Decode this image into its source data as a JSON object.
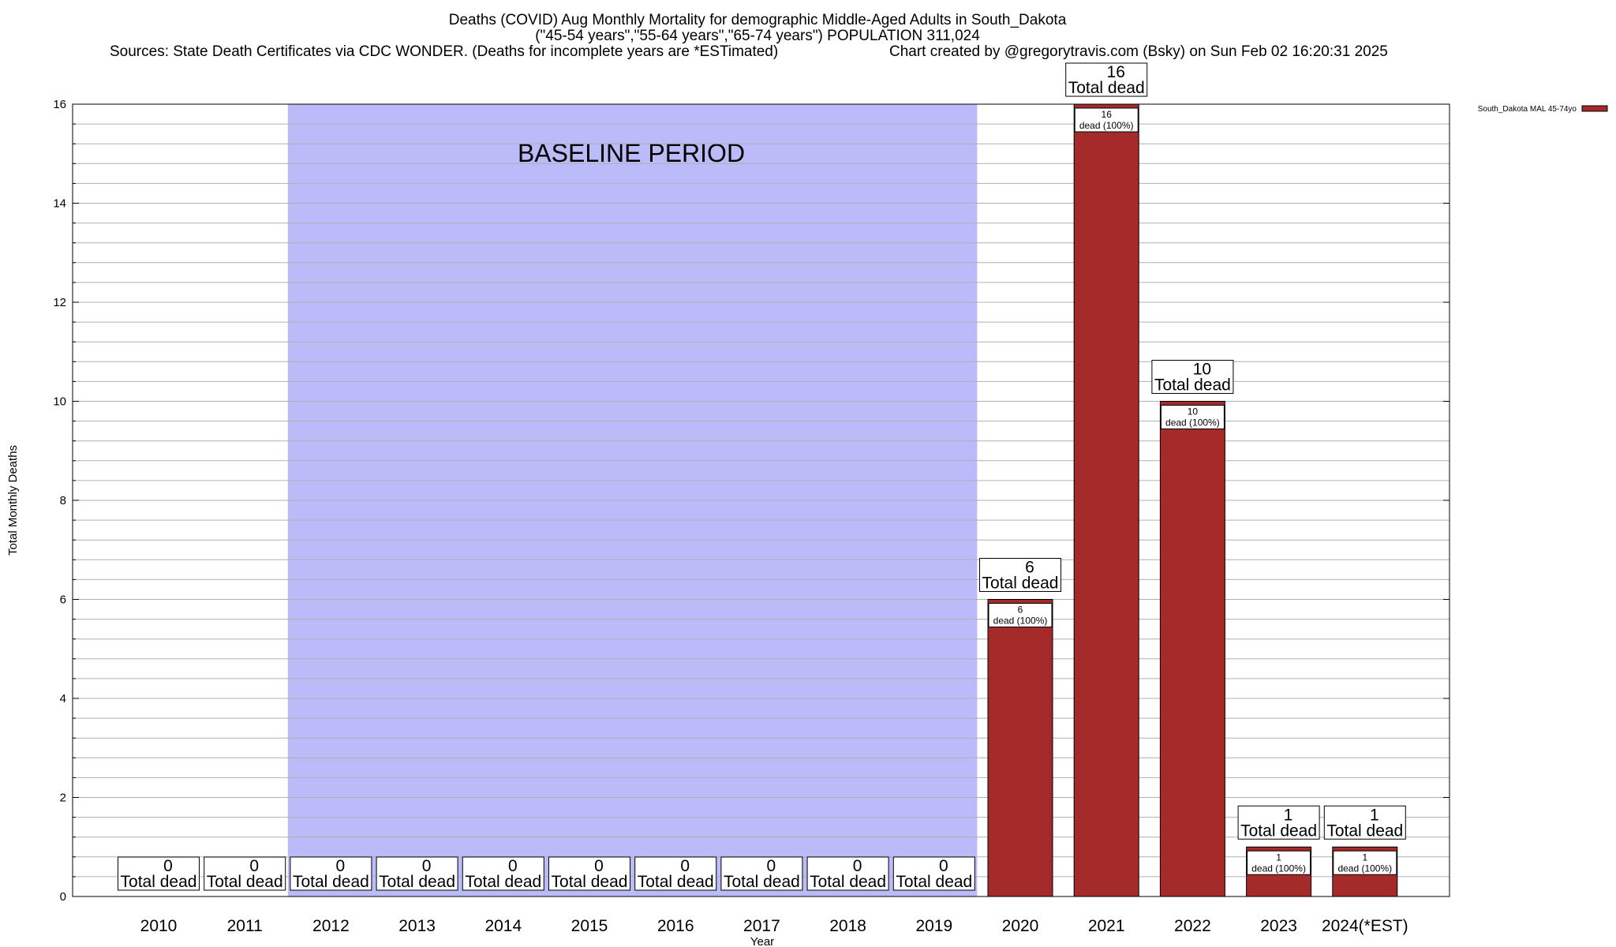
{
  "chart_data": {
    "type": "bar",
    "title_lines": [
      "Deaths (COVID) Aug Monthly Mortality for demographic Middle-Aged Adults in South_Dakota",
      "(\"45-54 years\",\"55-64 years\",\"65-74 years\") POPULATION 311,024"
    ],
    "sources": "Sources: State Death Certificates via CDC WONDER. (Deaths for incomplete years are *ESTimated)",
    "credit": "Chart created by @gregorytravis.com (Bsky) on Sun Feb 02 16:20:31 2025",
    "xlabel": "Year",
    "ylabel": "Total Monthly Deaths",
    "ylim": [
      0,
      16
    ],
    "yticks": [
      0,
      2,
      4,
      6,
      8,
      10,
      12,
      14,
      16
    ],
    "minor_grid_step": 0.4,
    "grid": true,
    "categories": [
      "2010",
      "2011",
      "2012",
      "2013",
      "2014",
      "2015",
      "2016",
      "2017",
      "2018",
      "2019",
      "2020",
      "2021",
      "2022",
      "2023",
      "2024(*EST)"
    ],
    "series": [
      {
        "name": "South_Dakota MAL 45-74yo",
        "color": "#a52a2a",
        "values": [
          0,
          0,
          0,
          0,
          0,
          0,
          0,
          0,
          0,
          0,
          6,
          16,
          10,
          1,
          1
        ]
      }
    ],
    "total_label": "Total dead",
    "inner_label_line2": "dead (100%)",
    "baseline": {
      "label": "BASELINE PERIOD",
      "start_category": "2012",
      "end_category": "2019",
      "color": "#bbbbf9"
    },
    "legend": {
      "position": "top-right",
      "label": "South_Dakota MAL 45-74yo"
    }
  }
}
